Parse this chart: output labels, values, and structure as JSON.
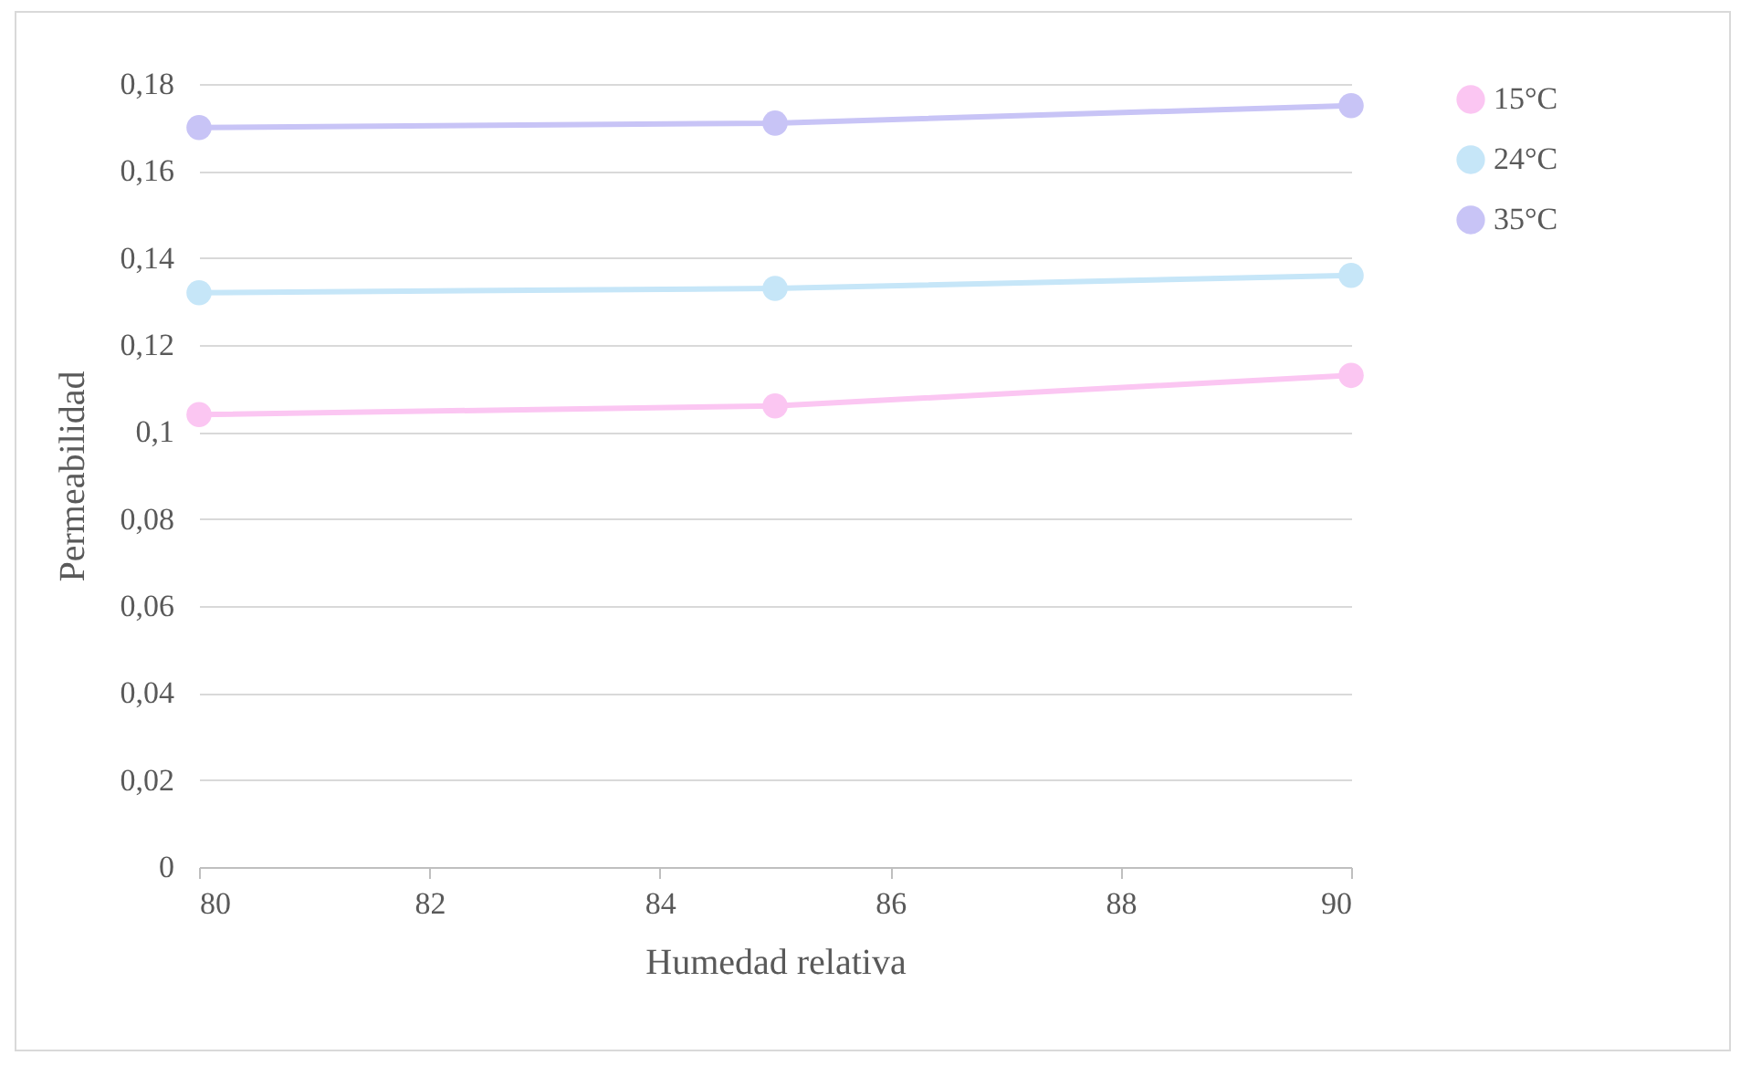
{
  "chart_data": {
    "type": "line",
    "xlabel": "Humedad relativa",
    "ylabel": "Permeabilidad",
    "x": [
      80,
      85,
      90
    ],
    "series": [
      {
        "name": "15°C",
        "color": "#fbc6f2",
        "values": [
          0.104,
          0.106,
          0.113
        ]
      },
      {
        "name": "24°C",
        "color": "#c6e6f8",
        "values": [
          0.132,
          0.133,
          0.136
        ]
      },
      {
        "name": "35°C",
        "color": "#c8c4f6",
        "values": [
          0.17,
          0.171,
          0.175
        ]
      }
    ],
    "xlim": [
      80,
      90
    ],
    "xticks": [
      80,
      82,
      84,
      86,
      88,
      90
    ],
    "ylim": [
      0,
      0.18
    ],
    "yticks": [
      0,
      {
        "value": 0.02,
        "label": "0,02"
      },
      {
        "value": 0.04,
        "label": "0,04"
      },
      {
        "value": 0.06,
        "label": "0,06"
      },
      {
        "value": 0.08,
        "label": "0,08"
      },
      {
        "value": 0.1,
        "label": "0,1"
      },
      {
        "value": 0.12,
        "label": "0,12"
      },
      {
        "value": 0.14,
        "label": "0,14"
      },
      {
        "value": 0.16,
        "label": "0,16"
      },
      {
        "value": 0.18,
        "label": "0,18"
      }
    ],
    "grid": "y",
    "legend": "right",
    "marker": "circle",
    "line_style": "solid"
  }
}
